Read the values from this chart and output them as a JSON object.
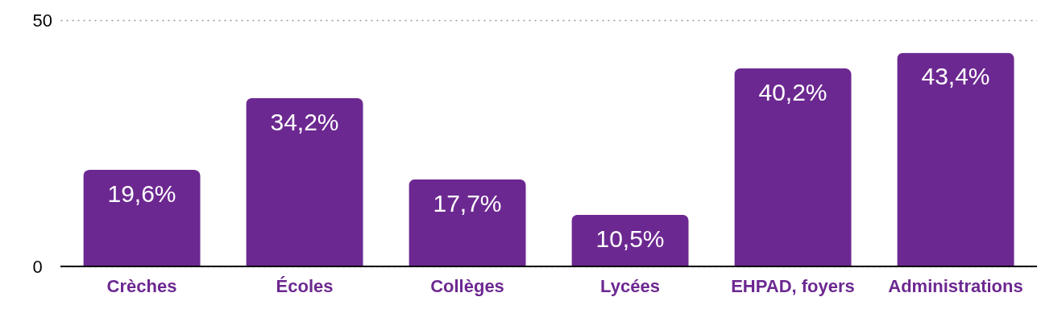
{
  "chart_data": {
    "type": "bar",
    "categories": [
      "Crèches",
      "Écoles",
      "Collèges",
      "Lycées",
      "EHPAD, foyers",
      "Administrations"
    ],
    "values": [
      19.6,
      34.2,
      17.7,
      10.5,
      40.2,
      43.4
    ],
    "value_labels": [
      "19,6%",
      "34,2%",
      "17,7%",
      "10,5%",
      "40,2%",
      "43,4%"
    ],
    "color": "#6c2891",
    "ylim": [
      0,
      50
    ],
    "yticks": [
      0,
      50
    ],
    "grid": "y"
  }
}
